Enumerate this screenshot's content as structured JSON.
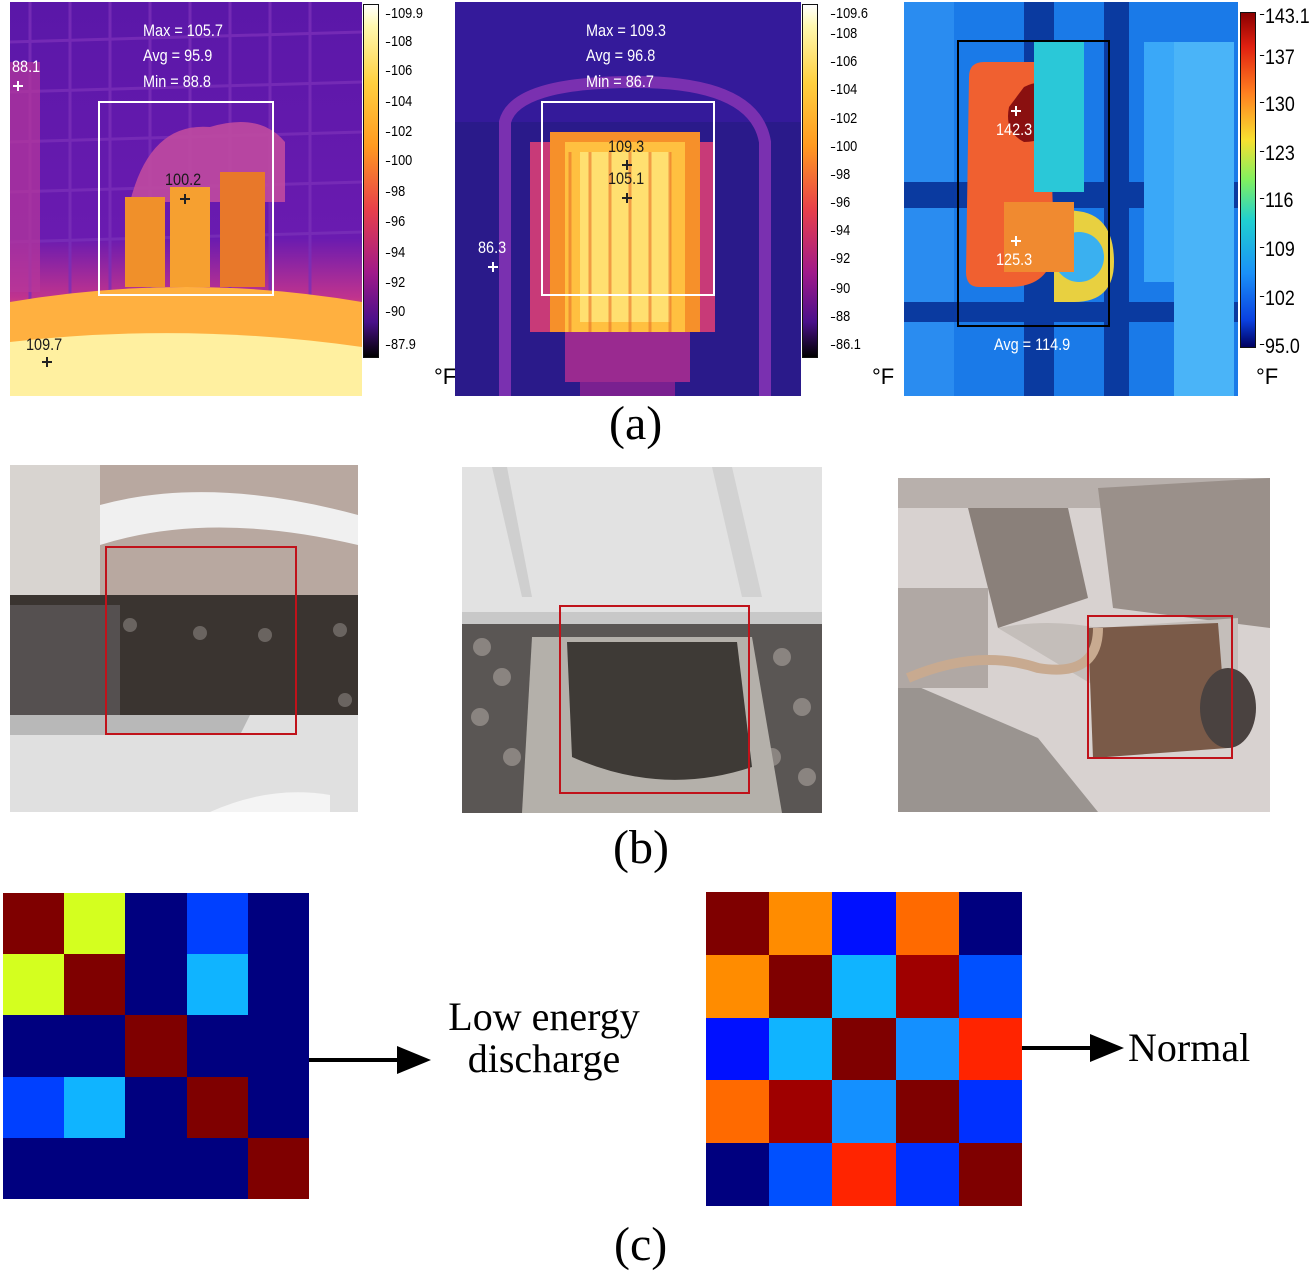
{
  "panels": {
    "a_label": "(a)",
    "b_label": "(b)",
    "c_label": "(c)"
  },
  "thermal1": {
    "max": "Max = 105.7",
    "avg": "Avg = 95.9",
    "min": "Min = 88.8",
    "spot_left": "88.1",
    "spot_center": "100.2",
    "spot_bottom": "109.7",
    "ticks": [
      "109.9",
      "108",
      "106",
      "104",
      "102",
      "100",
      "98",
      "96",
      "94",
      "92",
      "90",
      "87.9"
    ],
    "unit": "°F"
  },
  "thermal2": {
    "max": "Max = 109.3",
    "avg": "Avg = 96.8",
    "min": "Min = 86.7",
    "spot_top": "109.3",
    "spot_mid": "105.1",
    "spot_left": "86.3",
    "ticks": [
      "109.6",
      "108",
      "106",
      "104",
      "102",
      "100",
      "98",
      "96",
      "94",
      "92",
      "90",
      "88",
      "86.1"
    ],
    "unit": "°F"
  },
  "thermal3": {
    "spot_top": "142.3",
    "spot_bottom": "125.3",
    "avg": "Avg = 114.9",
    "ticks": [
      "143.1",
      "137",
      "130",
      "123",
      "116",
      "109",
      "102",
      "95.0"
    ],
    "unit": "°F"
  },
  "matrix_low": {
    "colors": [
      [
        "#7f0000",
        "#d4ff1f",
        "#00007f",
        "#0040ff",
        "#00007f"
      ],
      [
        "#d4ff1f",
        "#7f0000",
        "#00007f",
        "#10b4ff",
        "#00007f"
      ],
      [
        "#00007f",
        "#00007f",
        "#7f0000",
        "#00007f",
        "#00007f"
      ],
      [
        "#0040ff",
        "#10b4ff",
        "#00007f",
        "#7f0000",
        "#00007f"
      ],
      [
        "#00007f",
        "#00007f",
        "#00007f",
        "#00007f",
        "#7f0000"
      ]
    ],
    "label_line1": "Low energy",
    "label_line2": "discharge"
  },
  "matrix_normal": {
    "colors": [
      [
        "#7f0000",
        "#ff8c00",
        "#0010ff",
        "#ff6a00",
        "#00007f"
      ],
      [
        "#ff8c00",
        "#7f0000",
        "#10b4ff",
        "#9f0000",
        "#0050ff"
      ],
      [
        "#0010ff",
        "#10b4ff",
        "#7f0000",
        "#1490ff",
        "#ff2400"
      ],
      [
        "#ff6a00",
        "#9f0000",
        "#1490ff",
        "#7f0000",
        "#0030ff"
      ],
      [
        "#00007f",
        "#0050ff",
        "#ff2400",
        "#0030ff",
        "#7f0000"
      ]
    ],
    "label": "Normal"
  }
}
